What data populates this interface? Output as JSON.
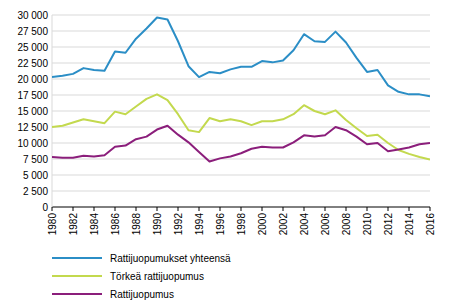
{
  "chart_data": {
    "type": "line",
    "x": [
      1980,
      1981,
      1982,
      1983,
      1984,
      1985,
      1986,
      1987,
      1988,
      1989,
      1990,
      1991,
      1992,
      1993,
      1994,
      1995,
      1996,
      1997,
      1998,
      1999,
      2000,
      2001,
      2002,
      2003,
      2004,
      2005,
      2006,
      2007,
      2008,
      2009,
      2010,
      2011,
      2012,
      2013,
      2014,
      2015,
      2016
    ],
    "xlim": [
      1980,
      2016
    ],
    "xticks": [
      1980,
      1982,
      1984,
      1986,
      1988,
      1990,
      1992,
      1994,
      1996,
      1998,
      2000,
      2002,
      2004,
      2006,
      2008,
      2010,
      2012,
      2014,
      2016
    ],
    "ylim": [
      0,
      30000
    ],
    "yticks": [
      0,
      {
        "value": 2500,
        "label": "2 500"
      },
      {
        "value": 5000,
        "label": "5 000"
      },
      {
        "value": 7500,
        "label": "7 500"
      },
      {
        "value": 10000,
        "label": "10 000"
      },
      {
        "value": 12500,
        "label": "12 500"
      },
      {
        "value": 15000,
        "label": "15 000"
      },
      {
        "value": 17500,
        "label": "17 500"
      },
      {
        "value": 20000,
        "label": "20 000"
      },
      {
        "value": 22500,
        "label": "22 500"
      },
      {
        "value": 25000,
        "label": "25 000"
      },
      {
        "value": 27500,
        "label": "27 500"
      },
      {
        "value": 30000,
        "label": "30 000"
      }
    ],
    "grid": true,
    "legend": "bottom",
    "series": [
      {
        "name": "Rattijuopumukset yhteensä",
        "color": "#2b8ec6",
        "values": [
          20300,
          20500,
          20800,
          21700,
          21400,
          21300,
          24300,
          24100,
          26300,
          27900,
          29600,
          29300,
          25900,
          22000,
          20300,
          21100,
          20900,
          21500,
          21900,
          21900,
          22800,
          22600,
          22900,
          24500,
          27000,
          25900,
          25800,
          27400,
          25700,
          23300,
          21100,
          21400,
          19000,
          18000,
          17600,
          17600,
          17300
        ]
      },
      {
        "name": "Törkeä rattijuopumus",
        "color": "#c3d94e",
        "values": [
          12500,
          12700,
          13200,
          13700,
          13400,
          13100,
          14900,
          14500,
          15700,
          16900,
          17600,
          16700,
          14500,
          12000,
          11700,
          13900,
          13400,
          13700,
          13400,
          12800,
          13400,
          13400,
          13700,
          14500,
          15900,
          15000,
          14500,
          15100,
          13600,
          12300,
          11100,
          11300,
          10000,
          8900,
          8300,
          7800,
          7400
        ]
      },
      {
        "name": "Rattijuopumus",
        "color": "#8b1e7b",
        "values": [
          7800,
          7700,
          7700,
          8000,
          7900,
          8100,
          9400,
          9600,
          10600,
          11000,
          12100,
          12700,
          11300,
          10100,
          8600,
          7100,
          7600,
          7900,
          8400,
          9100,
          9400,
          9300,
          9300,
          10100,
          11200,
          11000,
          11200,
          12500,
          12000,
          11000,
          9800,
          10000,
          8700,
          9000,
          9300,
          9800,
          10000
        ]
      }
    ]
  }
}
